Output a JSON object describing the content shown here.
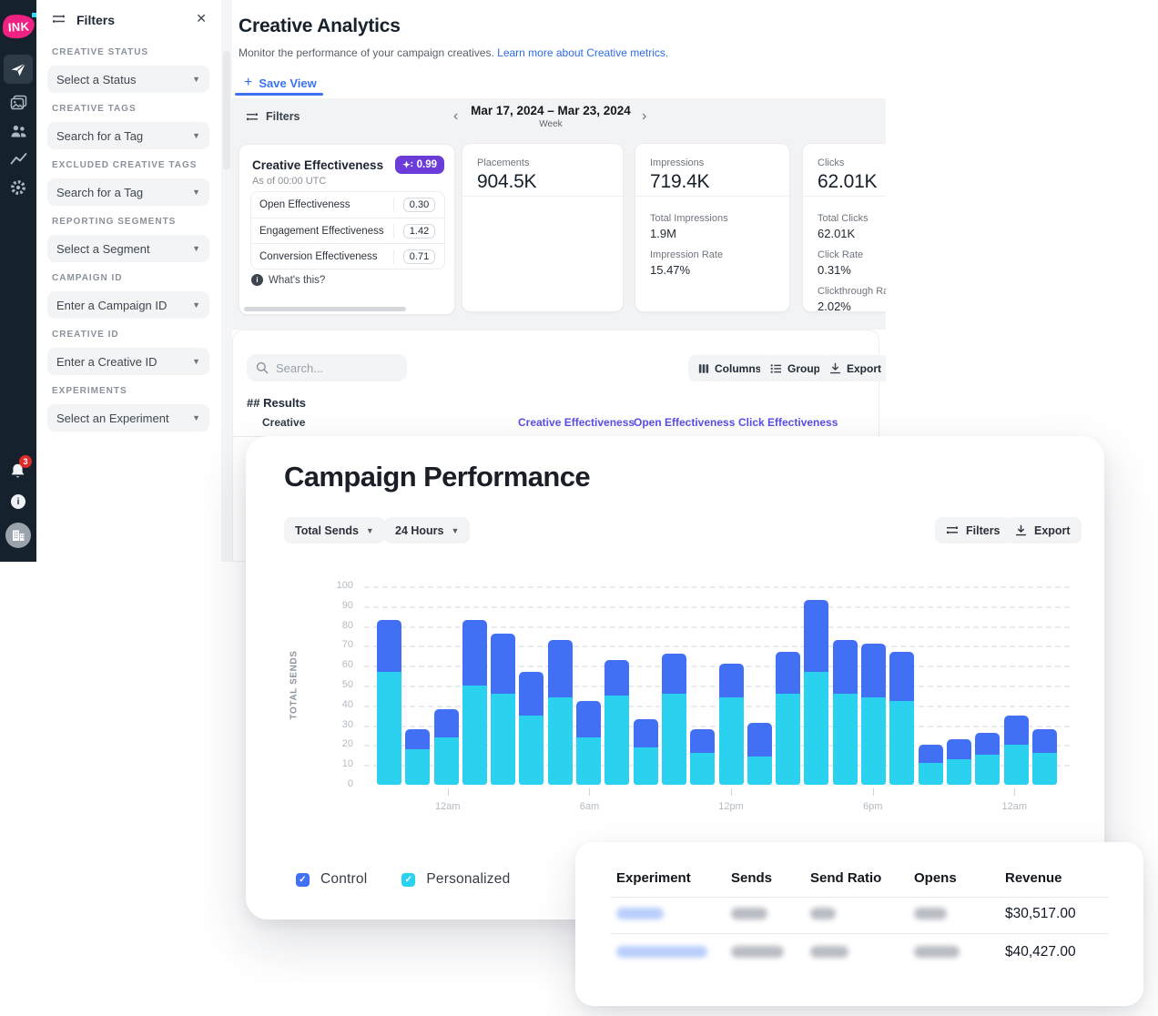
{
  "sidebar": {
    "logo_text": "INK",
    "nav_items": [
      {
        "icon": "send-icon",
        "active": true
      },
      {
        "icon": "gallery-icon",
        "active": false
      },
      {
        "icon": "audience-icon",
        "active": false
      },
      {
        "icon": "analytics-icon",
        "active": false
      },
      {
        "icon": "settings-icon",
        "active": false
      }
    ],
    "notification_count": "3"
  },
  "filters_panel": {
    "title": "Filters",
    "sections": [
      {
        "label": "CREATIVE STATUS",
        "value": "Select a Status"
      },
      {
        "label": "CREATIVE TAGS",
        "value": "Search for a Tag"
      },
      {
        "label": "EXCLUDED CREATIVE TAGS",
        "value": "Search for a Tag"
      },
      {
        "label": "REPORTING SEGMENTS",
        "value": "Select a Segment"
      },
      {
        "label": "CAMPAIGN ID",
        "value": "Enter a Campaign ID"
      },
      {
        "label": "CREATIVE ID",
        "value": "Enter a Creative ID"
      },
      {
        "label": "EXPERIMENTS",
        "value": "Select an Experiment"
      }
    ]
  },
  "page": {
    "title": "Creative Analytics",
    "subtitle": "Monitor the performance of your campaign creatives. ",
    "subtitle_link": "Learn more about Creative metrics.",
    "save_view_label": "Save View",
    "toolbar": {
      "filters_label": "Filters",
      "date_range": "Mar 17, 2024 – Mar 23, 2024",
      "date_granularity": "Week"
    }
  },
  "effectiveness_card": {
    "title": "Creative Effectiveness",
    "score": "0.99",
    "as_of": "As of 00:00 UTC",
    "rows": [
      {
        "label": "Open Effectiveness",
        "value": "0.30"
      },
      {
        "label": "Engagement Effectiveness",
        "value": "1.42"
      },
      {
        "label": "Conversion Effectiveness",
        "value": "0.71"
      }
    ],
    "whats_this": "What's this?"
  },
  "metric_cards": {
    "placements": {
      "label": "Placements",
      "value": "904.5K"
    },
    "impressions": {
      "label": "Impressions",
      "value": "719.4K",
      "details": [
        {
          "label": "Total Impressions",
          "value": "1.9M"
        },
        {
          "label": "Impression Rate",
          "value": "15.47%"
        }
      ]
    },
    "clicks": {
      "label": "Clicks",
      "value": "62.01K",
      "details": [
        {
          "label": "Total Clicks",
          "value": "62.01K"
        },
        {
          "label": "Click Rate",
          "value": "0.31%"
        },
        {
          "label": "Clickthrough Rate",
          "value": "2.02%"
        }
      ]
    }
  },
  "results_section": {
    "search_placeholder": "Search...",
    "columns_button": "Columns",
    "group_button": "Group",
    "export_button": "Export",
    "results_count": "## Results",
    "creative_header": "Creative",
    "metric_headers": [
      "Creative Effectiveness",
      "Open Effectiveness",
      "Click Effectiveness"
    ]
  },
  "campaign_performance": {
    "title": "Campaign Performance",
    "metric_dropdown": "Total Sends",
    "range_dropdown": "24 Hours",
    "filters_button": "Filters",
    "export_button": "Export",
    "legend": [
      {
        "label": "Control",
        "color": "#4170f4",
        "checked": true
      },
      {
        "label": "Personalized",
        "color": "#2bd2f0",
        "checked": true
      }
    ]
  },
  "chart_data": {
    "type": "bar",
    "stacked": true,
    "title": "Campaign Performance",
    "ylabel": "TOTAL SENDS",
    "ylim": [
      0,
      100
    ],
    "y_ticks": [
      0,
      10,
      20,
      30,
      40,
      50,
      60,
      70,
      80,
      90,
      100
    ],
    "grid": "horizontal-dashed",
    "legend_position": "bottom-left",
    "x_unit": "hour",
    "num_bars": 24,
    "x_ticks": [
      {
        "index": 2,
        "label": "12am"
      },
      {
        "index": 7,
        "label": "6am"
      },
      {
        "index": 12,
        "label": "12pm"
      },
      {
        "index": 17,
        "label": "6pm"
      },
      {
        "index": 22,
        "label": "12am"
      }
    ],
    "series": [
      {
        "name": "Personalized",
        "color": "#2bd2f0",
        "stack_order": "bottom",
        "values": [
          57,
          18,
          24,
          50,
          46,
          35,
          44,
          24,
          45,
          19,
          46,
          16,
          44,
          14,
          46,
          57,
          46,
          44,
          42,
          11,
          13,
          15,
          20,
          16
        ]
      },
      {
        "name": "Control",
        "color": "#4170f4",
        "stack_order": "top",
        "values": [
          26,
          10,
          14,
          33,
          30,
          22,
          29,
          18,
          18,
          14,
          20,
          12,
          17,
          17,
          21,
          36,
          27,
          27,
          25,
          9,
          10,
          11,
          15,
          12
        ]
      }
    ]
  },
  "experiment_table": {
    "headers": [
      "Experiment",
      "Sends",
      "Send Ratio",
      "Opens",
      "Revenue"
    ],
    "rows": [
      {
        "experiment": "[blurred]",
        "sends": "[blurred]",
        "send_ratio": "[blurred]",
        "opens": "[blurred]",
        "revenue": "$30,517.00"
      },
      {
        "experiment": "[blurred]",
        "sends": "[blurred]",
        "send_ratio": "[blurred]",
        "opens": "[blurred]",
        "revenue": "$40,427.00"
      }
    ]
  }
}
